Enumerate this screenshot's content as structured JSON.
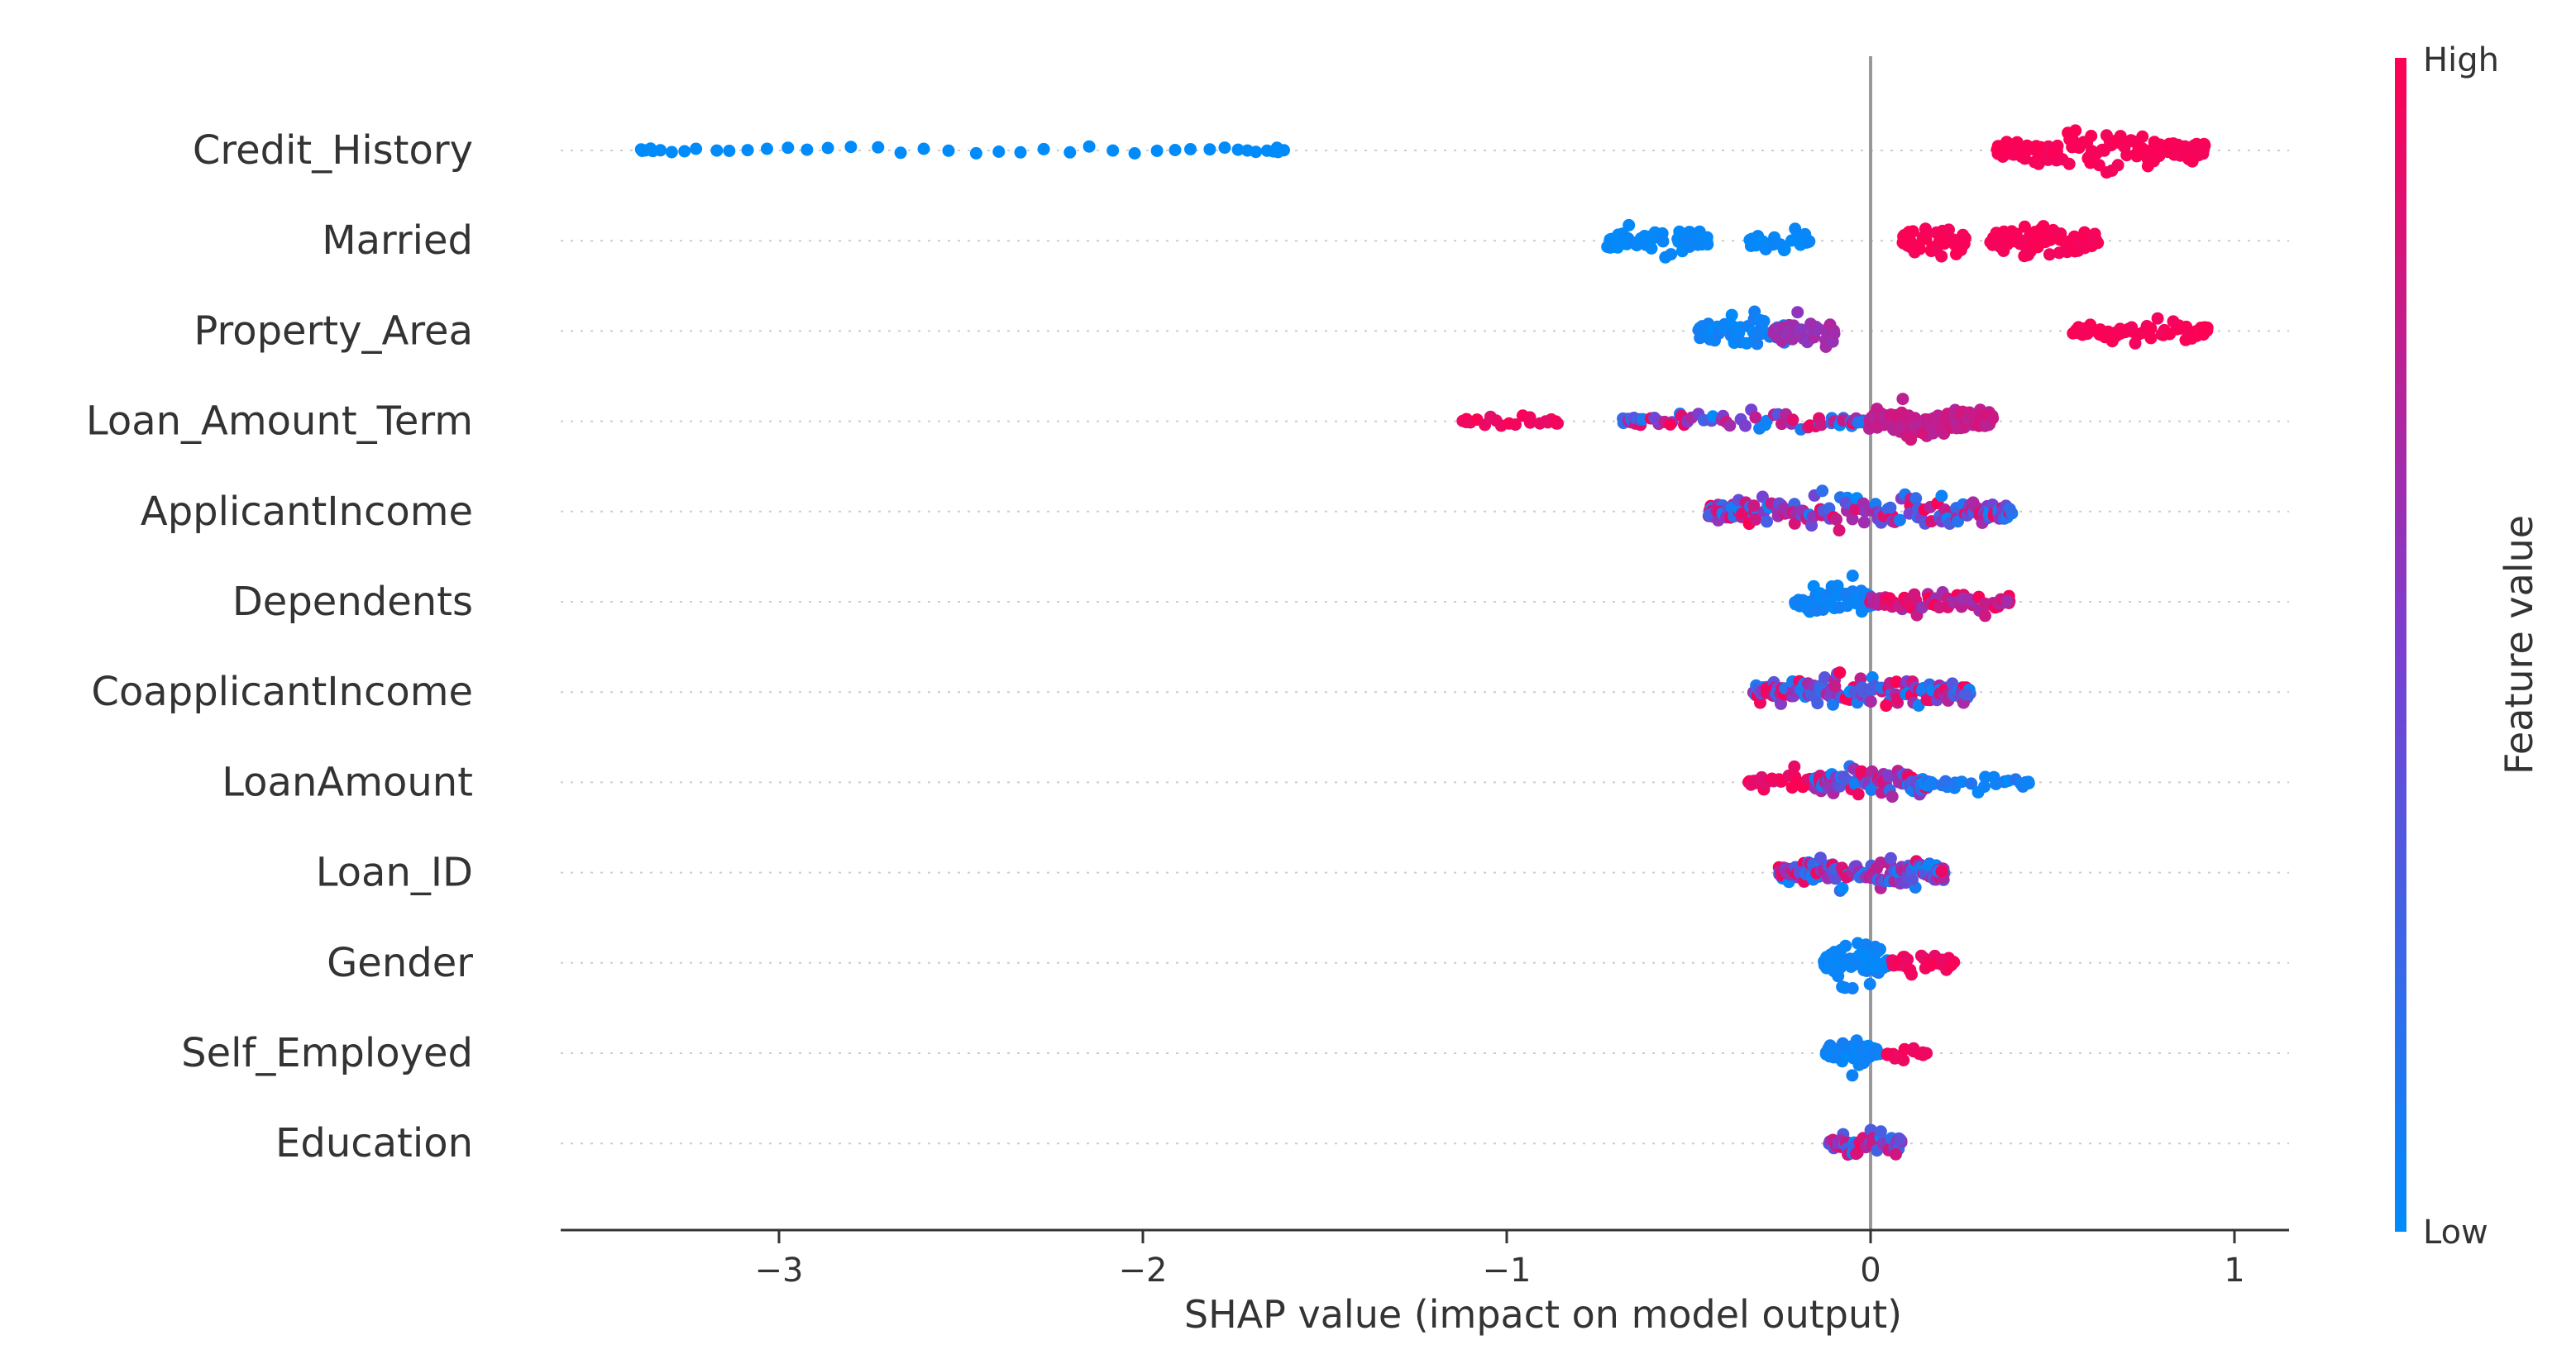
{
  "chart_data": {
    "type": "scatter",
    "subtype": "shap-beeswarm",
    "title": "",
    "xlabel": "SHAP value (impact on model output)",
    "xlim": [
      -3.6,
      1.15
    ],
    "xticks": [
      -3,
      -2,
      -1,
      0,
      1
    ],
    "xtick_labels": [
      "−3",
      "−2",
      "−1",
      "0",
      "1"
    ],
    "zero_line_at": 0,
    "colorbar": {
      "label": "Feature value",
      "high_label": "High",
      "low_label": "Low",
      "high_color": "#ff0052",
      "low_color": "#008bfb"
    },
    "features": [
      {
        "name": "Credit_History",
        "clusters": [
          {
            "from": -3.4,
            "to": -1.6,
            "n": 42,
            "spread": 0.18,
            "fv": [
              0.0,
              0.0
            ]
          },
          {
            "from": 0.35,
            "to": 0.92,
            "n": 150,
            "spread": 0.55,
            "fv": [
              0.95,
              1.0
            ]
          }
        ]
      },
      {
        "name": "Married",
        "clusters": [
          {
            "from": -0.72,
            "to": -0.45,
            "n": 55,
            "spread": 0.55,
            "fv": [
              0.0,
              0.05
            ]
          },
          {
            "from": -0.33,
            "to": -0.17,
            "n": 28,
            "spread": 0.45,
            "fv": [
              0.0,
              0.05
            ]
          },
          {
            "from": 0.09,
            "to": 0.26,
            "n": 45,
            "spread": 0.5,
            "fv": [
              0.95,
              1.0
            ]
          },
          {
            "from": 0.33,
            "to": 0.62,
            "n": 90,
            "spread": 0.6,
            "fv": [
              0.95,
              1.0
            ]
          }
        ]
      },
      {
        "name": "Property_Area",
        "clusters": [
          {
            "from": -0.47,
            "to": -0.22,
            "n": 70,
            "spread": 0.6,
            "fv": [
              0.0,
              0.1
            ]
          },
          {
            "from": -0.26,
            "to": -0.1,
            "n": 45,
            "spread": 0.6,
            "fv": [
              0.55,
              0.7
            ]
          },
          {
            "from": 0.56,
            "to": 0.93,
            "n": 75,
            "spread": 0.4,
            "fv": [
              0.95,
              1.0
            ]
          }
        ]
      },
      {
        "name": "Loan_Amount_Term",
        "clusters": [
          {
            "from": -1.12,
            "to": -0.86,
            "n": 22,
            "spread": 0.25,
            "fv": [
              0.9,
              1.0
            ]
          },
          {
            "from": -0.68,
            "to": -0.02,
            "n": 75,
            "spread": 0.35,
            "fv": [
              0.0,
              1.0
            ]
          },
          {
            "from": 0.0,
            "to": 0.33,
            "n": 150,
            "spread": 0.62,
            "fv": [
              0.7,
              0.85
            ]
          }
        ]
      },
      {
        "name": "ApplicantIncome",
        "clusters": [
          {
            "from": -0.45,
            "to": 0.39,
            "n": 190,
            "spread": 0.55,
            "fv": [
              0.0,
              1.0
            ]
          }
        ]
      },
      {
        "name": "Dependents",
        "clusters": [
          {
            "from": -0.2,
            "to": 0.0,
            "n": 70,
            "spread": 0.62,
            "fv": [
              0.0,
              0.1
            ]
          },
          {
            "from": 0.0,
            "to": 0.38,
            "n": 75,
            "spread": 0.4,
            "fv": [
              0.6,
              1.0
            ]
          }
        ]
      },
      {
        "name": "CoapplicantIncome",
        "clusters": [
          {
            "from": -0.32,
            "to": 0.27,
            "n": 170,
            "spread": 0.5,
            "fv": [
              0.0,
              1.0
            ]
          }
        ]
      },
      {
        "name": "LoanAmount",
        "clusters": [
          {
            "from": -0.33,
            "to": -0.15,
            "n": 30,
            "spread": 0.35,
            "fv": [
              0.85,
              1.0
            ]
          },
          {
            "from": -0.15,
            "to": 0.15,
            "n": 110,
            "spread": 0.62,
            "fv": [
              0.0,
              1.0
            ]
          },
          {
            "from": 0.15,
            "to": 0.44,
            "n": 30,
            "spread": 0.25,
            "fv": [
              0.0,
              0.2
            ]
          }
        ]
      },
      {
        "name": "Loan_ID",
        "clusters": [
          {
            "from": -0.25,
            "to": 0.2,
            "n": 160,
            "spread": 0.55,
            "fv": [
              0.0,
              1.0
            ]
          }
        ]
      },
      {
        "name": "Gender",
        "clusters": [
          {
            "from": -0.12,
            "to": 0.04,
            "n": 90,
            "spread": 0.65,
            "fv": [
              0.0,
              0.1
            ]
          },
          {
            "from": 0.06,
            "to": 0.23,
            "n": 35,
            "spread": 0.35,
            "fv": [
              0.9,
              1.0
            ]
          }
        ]
      },
      {
        "name": "Self_Employed",
        "clusters": [
          {
            "from": -0.12,
            "to": 0.02,
            "n": 60,
            "spread": 0.55,
            "fv": [
              0.0,
              0.1
            ]
          },
          {
            "from": 0.04,
            "to": 0.15,
            "n": 18,
            "spread": 0.3,
            "fv": [
              0.9,
              1.0
            ]
          }
        ]
      },
      {
        "name": "Education",
        "clusters": [
          {
            "from": -0.11,
            "to": 0.08,
            "n": 60,
            "spread": 0.6,
            "fv": [
              0.0,
              1.0
            ]
          }
        ]
      }
    ]
  }
}
